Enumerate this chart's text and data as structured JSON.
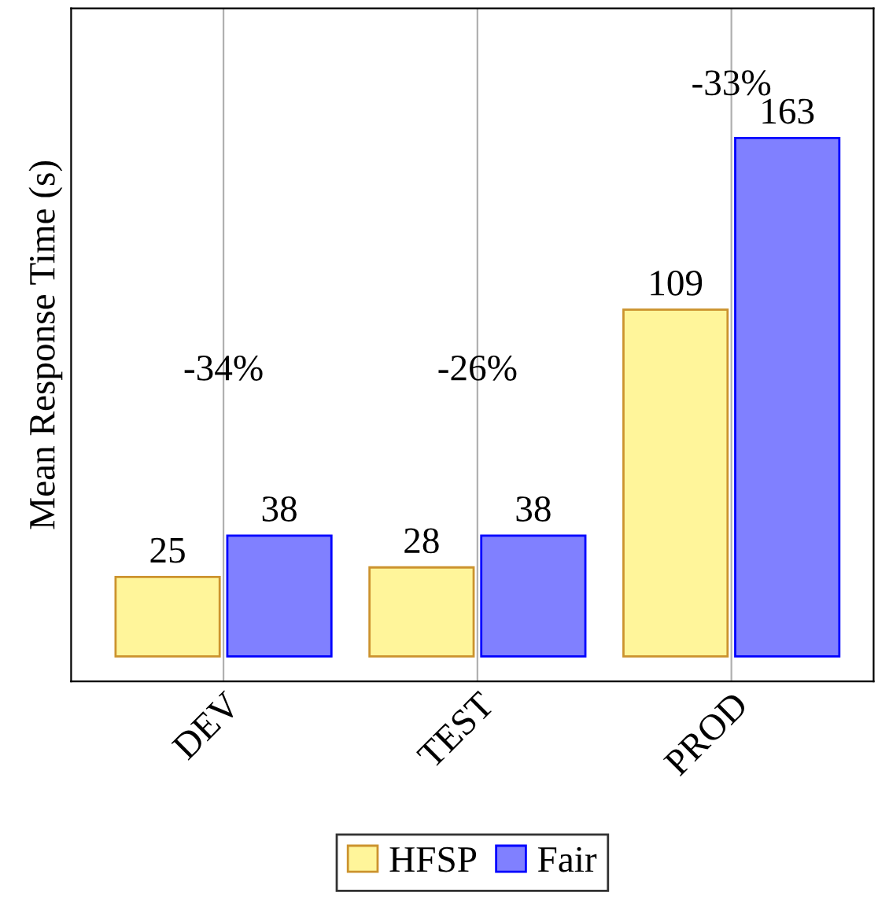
{
  "chart_data": {
    "type": "bar",
    "ylabel": "Mean Response Time (s)",
    "categories": [
      "DEV",
      "TEST",
      "PROD"
    ],
    "series": [
      {
        "name": "HFSP",
        "color": "#fff59a",
        "values": [
          25,
          28,
          109
        ]
      },
      {
        "name": "Fair",
        "color": "#8080ff",
        "values": [
          38,
          38,
          163
        ]
      }
    ],
    "data_labels": true,
    "grid": "x",
    "legend": "bottom",
    "tick_labels": "x",
    "annotations": [
      "-34%",
      "-26%",
      "-33%"
    ]
  }
}
